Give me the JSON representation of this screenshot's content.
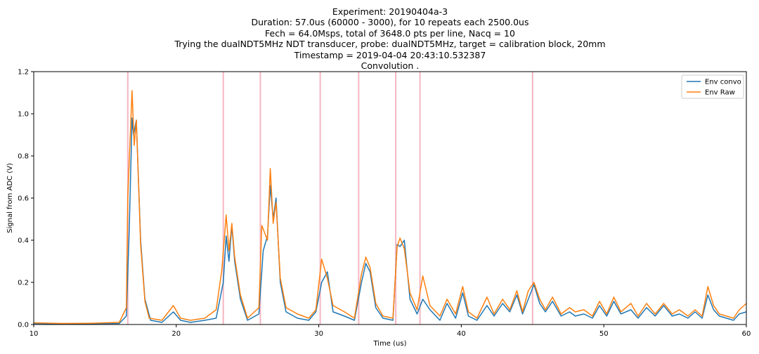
{
  "chart_data": {
    "type": "line",
    "title_lines": [
      "Experiment: 20190404a-3",
      "Duration: 57.0us (60000 - 3000), for 10 repeats each 2500.0us",
      "Fech = 64.0Msps, total of 3648.0 pts per line, Nacq = 10",
      "Trying the dualNDT5MHz NDT transducer, probe: dualNDT5MHz, target = calibration block, 20mm",
      "Timestamp = 2019-04-04 20:43:10.532387",
      "Convolution ."
    ],
    "xlabel": "Time (us)",
    "ylabel": "Signal from ADC (V)",
    "xlim": [
      10,
      60
    ],
    "ylim": [
      0,
      1.2
    ],
    "xticks": [
      "10",
      "20",
      "30",
      "40",
      "50",
      "60"
    ],
    "yticks": [
      "0.0",
      "0.2",
      "0.4",
      "0.6",
      "0.8",
      "1.0",
      "1.2"
    ],
    "grid": false,
    "legend_position": "top-right",
    "vertical_markers": [
      16.6,
      23.3,
      25.9,
      30.1,
      32.8,
      35.4,
      37.1,
      45.0
    ],
    "marker_color": "#f4b6c2",
    "series": [
      {
        "name": "Env convo",
        "color": "#1f77b4",
        "x": [
          10,
          12,
          14,
          16,
          16.5,
          16.7,
          16.9,
          17.0,
          17.2,
          17.5,
          17.8,
          18.2,
          19,
          19.8,
          20.3,
          21,
          22,
          22.8,
          23.3,
          23.5,
          23.7,
          23.9,
          24.1,
          24.5,
          25,
          25.8,
          26.1,
          26.4,
          26.6,
          26.8,
          27.0,
          27.3,
          27.7,
          28.5,
          29.3,
          29.8,
          30.2,
          30.6,
          31,
          31.8,
          32.5,
          33,
          33.3,
          33.6,
          34,
          34.5,
          35.2,
          35.5,
          35.7,
          36,
          36.4,
          36.9,
          37.3,
          37.8,
          38.5,
          39,
          39.6,
          40.1,
          40.5,
          41.1,
          41.8,
          42.3,
          42.9,
          43.4,
          43.9,
          44.3,
          44.7,
          45.1,
          45.5,
          45.9,
          46.4,
          47,
          47.6,
          48,
          48.6,
          49.2,
          49.7,
          50.2,
          50.7,
          51.2,
          51.9,
          52.4,
          53,
          53.6,
          54.2,
          54.8,
          55.3,
          55.9,
          56.4,
          56.9,
          57.3,
          57.7,
          58.1,
          58.6,
          59.1,
          59.5,
          60
        ],
        "y": [
          0.005,
          0.003,
          0.004,
          0.005,
          0.04,
          0.45,
          0.98,
          0.9,
          0.97,
          0.4,
          0.12,
          0.02,
          0.01,
          0.06,
          0.02,
          0.01,
          0.02,
          0.03,
          0.2,
          0.42,
          0.3,
          0.47,
          0.3,
          0.12,
          0.02,
          0.05,
          0.35,
          0.42,
          0.66,
          0.5,
          0.6,
          0.2,
          0.06,
          0.03,
          0.02,
          0.06,
          0.2,
          0.25,
          0.06,
          0.04,
          0.02,
          0.2,
          0.29,
          0.25,
          0.08,
          0.03,
          0.02,
          0.38,
          0.37,
          0.4,
          0.12,
          0.05,
          0.12,
          0.07,
          0.02,
          0.1,
          0.03,
          0.15,
          0.04,
          0.02,
          0.09,
          0.04,
          0.1,
          0.06,
          0.14,
          0.05,
          0.12,
          0.19,
          0.1,
          0.06,
          0.11,
          0.04,
          0.06,
          0.04,
          0.05,
          0.03,
          0.09,
          0.04,
          0.11,
          0.05,
          0.07,
          0.03,
          0.08,
          0.04,
          0.09,
          0.04,
          0.05,
          0.03,
          0.06,
          0.03,
          0.14,
          0.07,
          0.04,
          0.03,
          0.02,
          0.05,
          0.06
        ]
      },
      {
        "name": "Env Raw",
        "color": "#ff7f0e",
        "x": [
          10,
          12,
          14,
          16,
          16.5,
          16.6,
          16.9,
          17.05,
          17.2,
          17.5,
          17.8,
          18.1,
          19,
          19.8,
          20.3,
          21,
          22,
          22.8,
          23.2,
          23.5,
          23.7,
          23.9,
          24.1,
          24.5,
          25,
          25.8,
          26.0,
          26.4,
          26.6,
          26.8,
          27.0,
          27.3,
          27.7,
          28.5,
          29.3,
          29.8,
          30.2,
          30.6,
          31,
          31.8,
          32.5,
          33,
          33.3,
          33.6,
          34,
          34.5,
          35.2,
          35.5,
          35.7,
          36,
          36.4,
          36.9,
          37.3,
          37.8,
          38.5,
          39,
          39.6,
          40.1,
          40.5,
          41.1,
          41.8,
          42.3,
          42.9,
          43.4,
          43.9,
          44.3,
          44.7,
          45.1,
          45.5,
          45.9,
          46.4,
          47,
          47.6,
          48,
          48.6,
          49.2,
          49.7,
          50.2,
          50.7,
          51.2,
          51.9,
          52.4,
          53,
          53.6,
          54.2,
          54.8,
          55.3,
          55.9,
          56.4,
          56.9,
          57.3,
          57.7,
          58.1,
          58.6,
          59.1,
          59.5,
          60
        ],
        "y": [
          0.008,
          0.005,
          0.006,
          0.01,
          0.08,
          0.6,
          1.11,
          0.85,
          0.97,
          0.38,
          0.11,
          0.03,
          0.02,
          0.09,
          0.03,
          0.02,
          0.03,
          0.07,
          0.26,
          0.52,
          0.35,
          0.48,
          0.32,
          0.14,
          0.03,
          0.08,
          0.47,
          0.4,
          0.74,
          0.48,
          0.58,
          0.22,
          0.08,
          0.05,
          0.03,
          0.07,
          0.31,
          0.22,
          0.09,
          0.06,
          0.03,
          0.24,
          0.32,
          0.27,
          0.1,
          0.04,
          0.03,
          0.37,
          0.41,
          0.36,
          0.15,
          0.07,
          0.23,
          0.09,
          0.04,
          0.12,
          0.05,
          0.18,
          0.06,
          0.03,
          0.13,
          0.05,
          0.12,
          0.07,
          0.16,
          0.06,
          0.16,
          0.2,
          0.12,
          0.07,
          0.13,
          0.05,
          0.08,
          0.06,
          0.07,
          0.04,
          0.11,
          0.05,
          0.13,
          0.06,
          0.1,
          0.04,
          0.1,
          0.05,
          0.1,
          0.05,
          0.07,
          0.04,
          0.07,
          0.04,
          0.18,
          0.09,
          0.05,
          0.04,
          0.03,
          0.07,
          0.1
        ]
      }
    ]
  }
}
